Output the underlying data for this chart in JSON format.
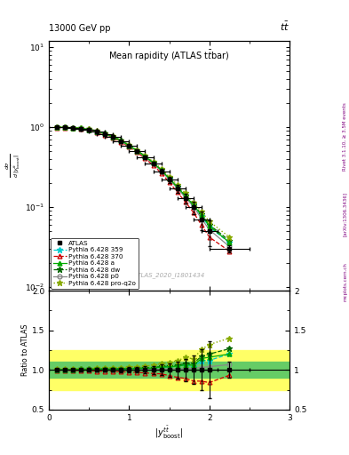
{
  "title_left": "13000 GeV pp",
  "title_right": "tt",
  "plot_title": "Mean rapidity (ATLAS ttbar)",
  "watermark": "ATLAS_2020_I1801434",
  "right_label1": "Rivet 3.1.10, ≥ 3.5M events",
  "right_label2": "[arXiv:1306.3436]",
  "right_label3": "mcplots.cern.ch",
  "xcenters": [
    0.1,
    0.2,
    0.3,
    0.4,
    0.5,
    0.6,
    0.7,
    0.8,
    0.9,
    1.0,
    1.1,
    1.2,
    1.3,
    1.4,
    1.5,
    1.6,
    1.7,
    1.8,
    1.9,
    2.0,
    2.25
  ],
  "xerr": [
    0.1,
    0.1,
    0.1,
    0.1,
    0.1,
    0.1,
    0.1,
    0.1,
    0.1,
    0.1,
    0.1,
    0.1,
    0.1,
    0.1,
    0.1,
    0.1,
    0.1,
    0.1,
    0.1,
    0.1,
    0.25
  ],
  "atlas_y": [
    0.99,
    0.99,
    0.975,
    0.96,
    0.93,
    0.88,
    0.82,
    0.75,
    0.67,
    0.58,
    0.5,
    0.42,
    0.35,
    0.28,
    0.22,
    0.17,
    0.13,
    0.1,
    0.07,
    0.05,
    0.03
  ],
  "atlas_yerr": [
    0.018,
    0.018,
    0.018,
    0.018,
    0.018,
    0.018,
    0.018,
    0.018,
    0.018,
    0.018,
    0.018,
    0.018,
    0.018,
    0.018,
    0.018,
    0.018,
    0.018,
    0.018,
    0.018,
    0.018,
    0.003
  ],
  "py359_y": [
    0.995,
    0.995,
    0.982,
    0.968,
    0.94,
    0.888,
    0.828,
    0.758,
    0.678,
    0.588,
    0.508,
    0.428,
    0.358,
    0.29,
    0.228,
    0.178,
    0.138,
    0.104,
    0.078,
    0.056,
    0.036
  ],
  "py370_y": [
    0.985,
    0.985,
    0.968,
    0.952,
    0.918,
    0.866,
    0.804,
    0.734,
    0.654,
    0.564,
    0.484,
    0.404,
    0.334,
    0.266,
    0.204,
    0.154,
    0.116,
    0.086,
    0.06,
    0.042,
    0.028
  ],
  "pya_y": [
    0.995,
    0.995,
    0.982,
    0.968,
    0.94,
    0.888,
    0.828,
    0.758,
    0.678,
    0.588,
    0.508,
    0.428,
    0.358,
    0.29,
    0.228,
    0.178,
    0.138,
    0.106,
    0.08,
    0.058,
    0.036
  ],
  "pydw_y": [
    0.995,
    0.995,
    0.982,
    0.968,
    0.942,
    0.89,
    0.83,
    0.76,
    0.68,
    0.59,
    0.51,
    0.43,
    0.36,
    0.292,
    0.23,
    0.18,
    0.14,
    0.108,
    0.082,
    0.06,
    0.038
  ],
  "pyp0_y": [
    0.99,
    0.99,
    0.977,
    0.962,
    0.932,
    0.88,
    0.82,
    0.75,
    0.67,
    0.58,
    0.5,
    0.42,
    0.35,
    0.282,
    0.222,
    0.172,
    0.132,
    0.102,
    0.072,
    0.052,
    0.032
  ],
  "pyq2o_y": [
    1.0,
    1.0,
    0.988,
    0.974,
    0.948,
    0.898,
    0.838,
    0.77,
    0.69,
    0.6,
    0.52,
    0.44,
    0.37,
    0.302,
    0.24,
    0.19,
    0.15,
    0.114,
    0.088,
    0.066,
    0.042
  ],
  "ratio_py359": [
    1.005,
    1.005,
    1.007,
    1.008,
    1.011,
    1.009,
    1.01,
    1.011,
    1.012,
    1.014,
    1.016,
    1.019,
    1.023,
    1.036,
    1.036,
    1.047,
    1.062,
    1.04,
    1.114,
    1.12,
    1.2
  ],
  "ratio_py370": [
    0.995,
    0.995,
    0.993,
    0.992,
    0.987,
    0.984,
    0.98,
    0.979,
    0.976,
    0.972,
    0.968,
    0.962,
    0.954,
    0.95,
    0.927,
    0.906,
    0.892,
    0.86,
    0.857,
    0.84,
    0.933
  ],
  "ratio_pya": [
    1.005,
    1.005,
    1.007,
    1.008,
    1.011,
    1.009,
    1.01,
    1.011,
    1.012,
    1.014,
    1.016,
    1.019,
    1.023,
    1.036,
    1.036,
    1.047,
    1.062,
    1.06,
    1.143,
    1.16,
    1.2
  ],
  "ratio_pydw": [
    1.005,
    1.005,
    1.007,
    1.008,
    1.013,
    1.011,
    1.012,
    1.013,
    1.015,
    1.017,
    1.02,
    1.024,
    1.029,
    1.043,
    1.045,
    1.059,
    1.077,
    1.08,
    1.171,
    1.2,
    1.267
  ],
  "ratio_pyp0": [
    1.0,
    1.0,
    1.002,
    1.002,
    1.002,
    1.0,
    1.0,
    1.0,
    1.0,
    1.0,
    1.0,
    1.0,
    1.0,
    1.007,
    1.009,
    1.012,
    1.015,
    1.02,
    1.029,
    1.04,
    1.067
  ],
  "ratio_pyq2o": [
    1.01,
    1.01,
    1.013,
    1.015,
    1.019,
    1.02,
    1.022,
    1.027,
    1.03,
    1.034,
    1.04,
    1.048,
    1.057,
    1.079,
    1.091,
    1.118,
    1.154,
    1.14,
    1.257,
    1.32,
    1.4
  ],
  "ylim_main": [
    0.009,
    12
  ],
  "ylim_ratio": [
    0.5,
    2.0
  ],
  "xlim": [
    0,
    3
  ],
  "bg_color_green": "#66cc66",
  "bg_color_yellow": "#ffff66",
  "ratio_green_lo": 0.9,
  "ratio_green_hi": 1.1,
  "ratio_yellow_lo": 0.75,
  "ratio_yellow_hi": 1.25
}
